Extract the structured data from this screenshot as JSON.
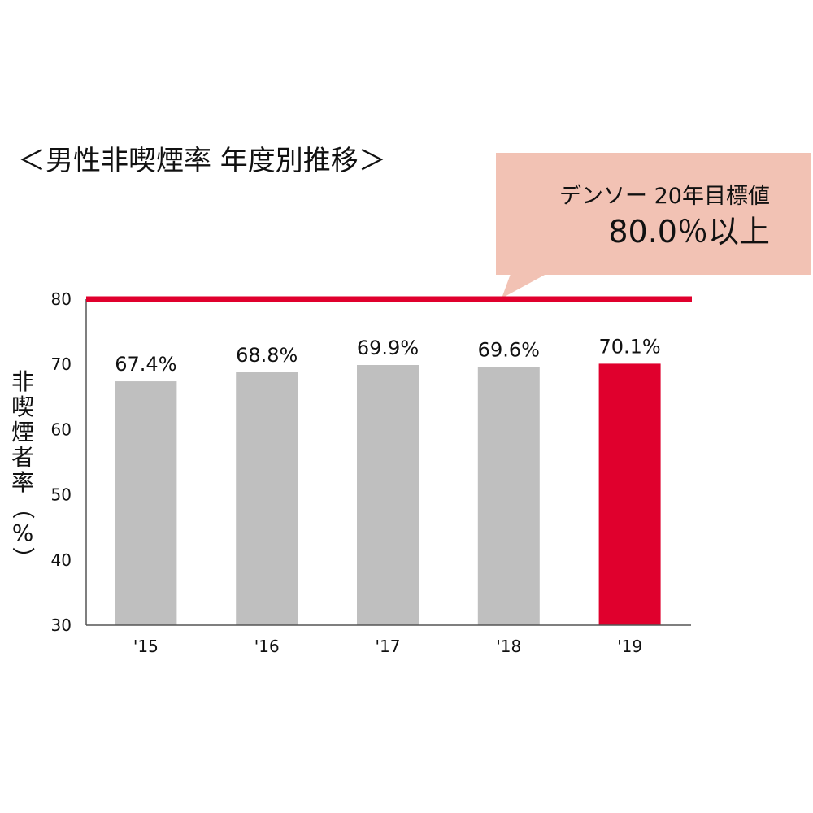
{
  "title": "＜男性非喫煙率 年度別推移＞",
  "callout": {
    "line1": "デンソー 20年目標値",
    "line2": "80.0％以上",
    "bg_color": "#f2c2b4"
  },
  "ylabel_chars": [
    "非",
    "喫",
    "煙",
    "者",
    "率",
    "（",
    "%",
    "）"
  ],
  "colors": {
    "bar": "#bfbfbf",
    "highlight": "#e0002d",
    "target": "#e0002d",
    "axis": "#555555"
  },
  "chart_data": {
    "type": "bar",
    "title": "＜男性非喫煙率 年度別推移＞",
    "ylabel": "非喫煙者率（%）",
    "xlabel": "",
    "categories": [
      "'15",
      "'16",
      "'17",
      "'18",
      "'19"
    ],
    "values": [
      67.4,
      68.8,
      69.9,
      69.6,
      70.1
    ],
    "data_labels": [
      "67.4%",
      "68.8%",
      "69.9%",
      "69.6%",
      "70.1%"
    ],
    "highlight_index": 4,
    "ylim": [
      30,
      80
    ],
    "yticks": [
      30,
      40,
      50,
      60,
      70,
      80
    ],
    "target_value": 80,
    "grid": false,
    "legend": "none"
  }
}
